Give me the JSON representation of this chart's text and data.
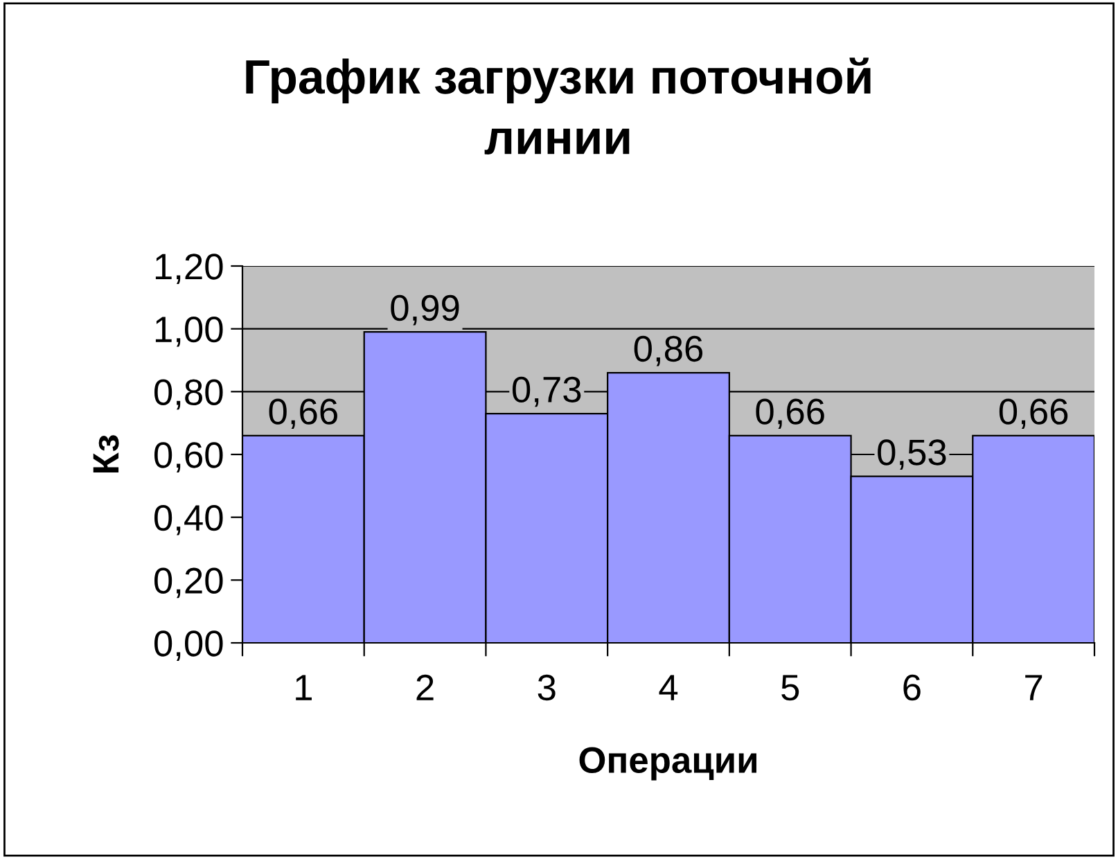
{
  "chart_data": {
    "type": "bar",
    "title": "График загрузки поточной\nлинии",
    "xlabel": "Операции",
    "ylabel": "Кз",
    "categories": [
      "1",
      "2",
      "3",
      "4",
      "5",
      "6",
      "7"
    ],
    "values": [
      0.66,
      0.99,
      0.73,
      0.86,
      0.66,
      0.53,
      0.66
    ],
    "value_labels": [
      "0,66",
      "0,99",
      "0,73",
      "0,86",
      "0,66",
      "0,53",
      "0,66"
    ],
    "color": "#9999ff",
    "ylim": [
      0,
      1.2
    ],
    "yticks": [
      {
        "value": 0,
        "label": "0,00"
      },
      {
        "value": 0.2,
        "label": "0,20"
      },
      {
        "value": 0.4,
        "label": "0,40"
      },
      {
        "value": 0.6,
        "label": "0,60"
      },
      {
        "value": 0.8,
        "label": "0,80"
      },
      {
        "value": 1.0,
        "label": "1,00"
      },
      {
        "value": 1.2,
        "label": "1,20"
      }
    ],
    "grid": "y",
    "legend": false
  }
}
